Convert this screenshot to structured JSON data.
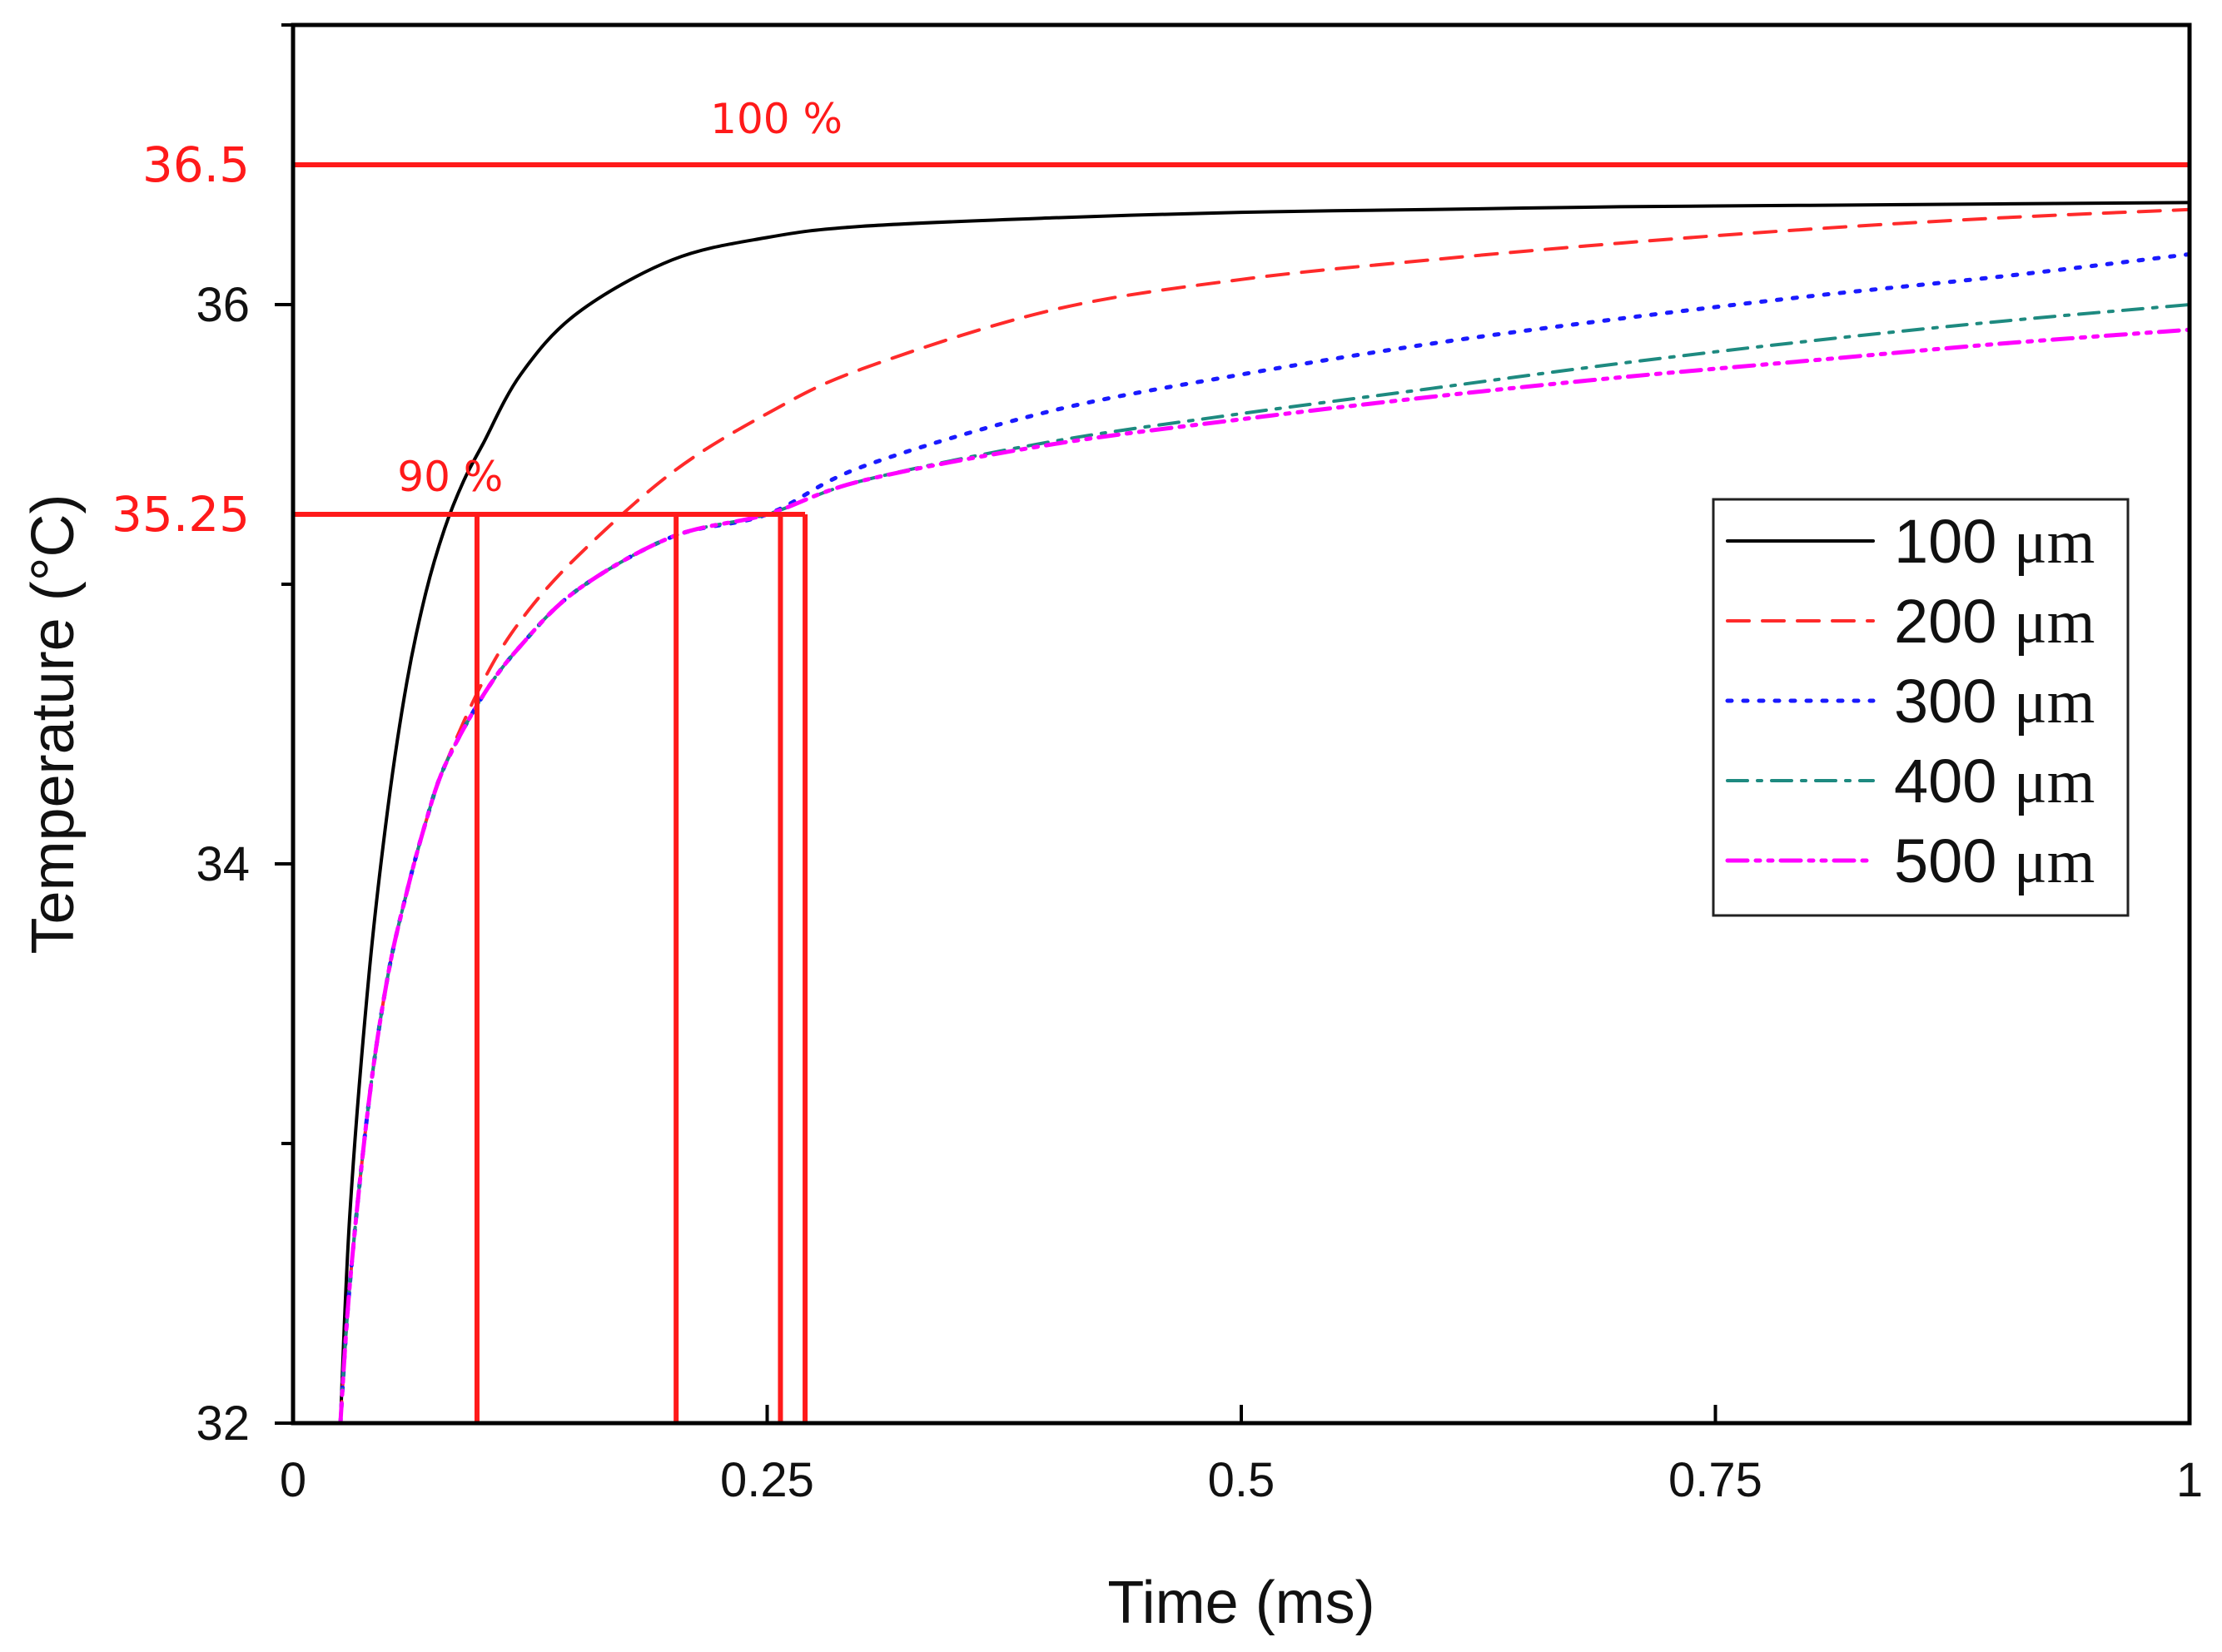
{
  "chart_data": {
    "type": "line",
    "title": "",
    "xlabel": "Time (ms)",
    "ylabel": "Temperature (°C)",
    "xlim": [
      0,
      1
    ],
    "ylim": [
      32,
      37
    ],
    "x_ticks": [
      {
        "value": 0,
        "label": "0"
      },
      {
        "value": 0.25,
        "label": "0.25"
      },
      {
        "value": 0.5,
        "label": "0.5"
      },
      {
        "value": 0.75,
        "label": "0.75"
      },
      {
        "value": 1,
        "label": "1"
      }
    ],
    "y_ticks": [
      {
        "value": 32,
        "label": "32"
      },
      {
        "value": 34,
        "label": "34"
      },
      {
        "value": 36,
        "label": "36"
      }
    ],
    "y_minor_ticks": [
      33,
      35,
      37
    ],
    "series": [
      {
        "name": "100 μm",
        "value_label": "100",
        "unit": "μm",
        "color": "#000000",
        "style": "solid",
        "x": [
          0.025,
          0.03,
          0.04,
          0.05,
          0.06,
          0.07,
          0.08,
          0.09,
          0.1,
          0.12,
          0.15,
          0.2,
          0.25,
          0.3,
          0.4,
          0.5,
          0.6,
          0.7,
          0.8,
          0.9,
          1.0
        ],
        "y": [
          32.0,
          32.75,
          33.6,
          34.2,
          34.65,
          34.97,
          35.2,
          35.37,
          35.5,
          35.75,
          35.97,
          36.16,
          36.24,
          36.28,
          36.31,
          36.33,
          36.34,
          36.35,
          36.355,
          36.36,
          36.365
        ]
      },
      {
        "name": "200 μm",
        "value_label": "200",
        "unit": "μm",
        "color": "#ff2a2a",
        "style": "dashed",
        "x": [
          0.025,
          0.03,
          0.04,
          0.05,
          0.06,
          0.07,
          0.08,
          0.1,
          0.12,
          0.15,
          0.2,
          0.25,
          0.3,
          0.4,
          0.5,
          0.6,
          0.7,
          0.8,
          0.9,
          1.0
        ],
        "y": [
          32.0,
          32.5,
          33.15,
          33.6,
          33.9,
          34.15,
          34.35,
          34.65,
          34.87,
          35.1,
          35.4,
          35.61,
          35.77,
          35.98,
          36.09,
          36.16,
          36.22,
          36.27,
          36.31,
          36.34
        ]
      },
      {
        "name": "300 μm",
        "value_label": "300",
        "unit": "μm",
        "color": "#1a1aff",
        "style": "dotted",
        "x": [
          0.025,
          0.03,
          0.04,
          0.05,
          0.06,
          0.07,
          0.08,
          0.1,
          0.12,
          0.15,
          0.2,
          0.25,
          0.3,
          0.4,
          0.5,
          0.6,
          0.7,
          0.8,
          0.9,
          1.0
        ],
        "y": [
          32.0,
          32.5,
          33.15,
          33.6,
          33.9,
          34.15,
          34.35,
          34.6,
          34.78,
          34.98,
          35.17,
          35.25,
          35.42,
          35.62,
          35.75,
          35.86,
          35.95,
          36.03,
          36.1,
          36.18
        ]
      },
      {
        "name": "400 μm",
        "value_label": "400",
        "unit": "μm",
        "color": "#1e8a80",
        "style": "dashdot",
        "x": [
          0.025,
          0.03,
          0.04,
          0.05,
          0.06,
          0.07,
          0.08,
          0.1,
          0.12,
          0.15,
          0.2,
          0.25,
          0.3,
          0.4,
          0.5,
          0.6,
          0.7,
          0.8,
          0.9,
          1.0
        ],
        "y": [
          32.0,
          32.5,
          33.15,
          33.6,
          33.9,
          34.15,
          34.35,
          34.6,
          34.78,
          34.98,
          35.17,
          35.25,
          35.37,
          35.51,
          35.61,
          35.7,
          35.79,
          35.87,
          35.94,
          36.0
        ]
      },
      {
        "name": "500 μm",
        "value_label": "500",
        "unit": "μm",
        "color": "#ff00ff",
        "style": "dashdotdot",
        "x": [
          0.025,
          0.03,
          0.04,
          0.05,
          0.06,
          0.07,
          0.08,
          0.1,
          0.12,
          0.15,
          0.2,
          0.25,
          0.3,
          0.4,
          0.5,
          0.6,
          0.7,
          0.8,
          0.9,
          1.0
        ],
        "y": [
          32.0,
          32.5,
          33.15,
          33.6,
          33.9,
          34.15,
          34.35,
          34.6,
          34.78,
          34.98,
          35.17,
          35.25,
          35.37,
          35.5,
          35.59,
          35.67,
          35.74,
          35.8,
          35.86,
          35.91
        ]
      }
    ],
    "reference_lines": {
      "color": "#ff1a1a",
      "horizontal": [
        {
          "y": 36.5,
          "x_start": 0,
          "x_end": 1,
          "label": "100 %",
          "label_x": 0.22
        },
        {
          "y": 35.25,
          "x_start": 0,
          "x_end": 0.27,
          "label": "90 %",
          "label_x": 0.055
        }
      ],
      "vertical": [
        {
          "x": 0.097,
          "y_top": 35.25
        },
        {
          "x": 0.202,
          "y_top": 35.25
        },
        {
          "x": 0.257,
          "y_top": 35.25
        },
        {
          "x": 0.27,
          "y_top": 35.25
        }
      ],
      "y_labels": [
        {
          "value": 36.5,
          "label": "36.5"
        },
        {
          "value": 35.25,
          "label": "35.25"
        }
      ]
    },
    "legend": {
      "position": "center-right"
    }
  }
}
